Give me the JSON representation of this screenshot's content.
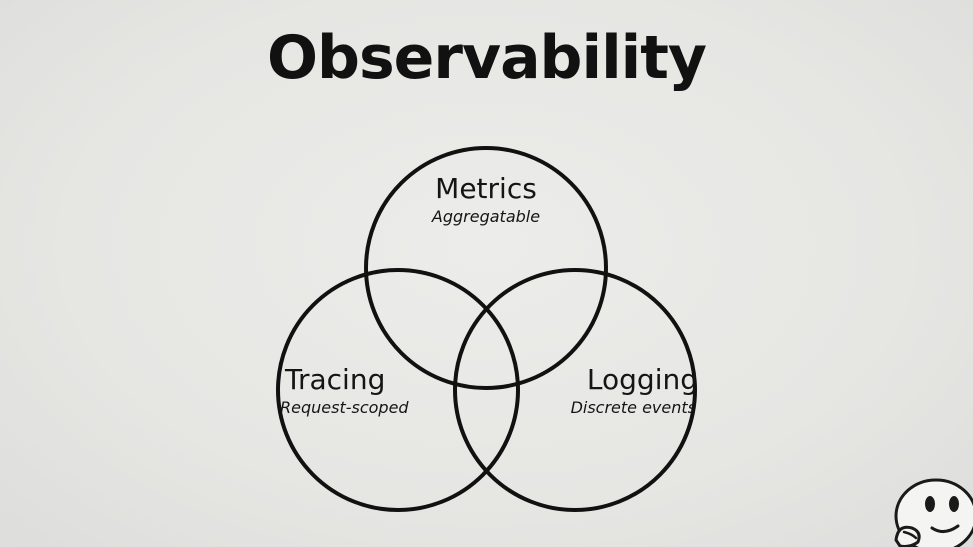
{
  "slide": {
    "title": "Observability"
  },
  "venn": {
    "sets": [
      {
        "key": "metrics",
        "name": "Metrics",
        "description": "Aggregatable"
      },
      {
        "key": "tracing",
        "name": "Tracing",
        "description": "Request-scoped"
      },
      {
        "key": "logging",
        "name": "Logging",
        "description": "Discrete events"
      }
    ]
  },
  "colors": {
    "background": "#e6e6e3",
    "ink": "#111111"
  },
  "icons": {
    "corner": "thinking-face-icon"
  }
}
